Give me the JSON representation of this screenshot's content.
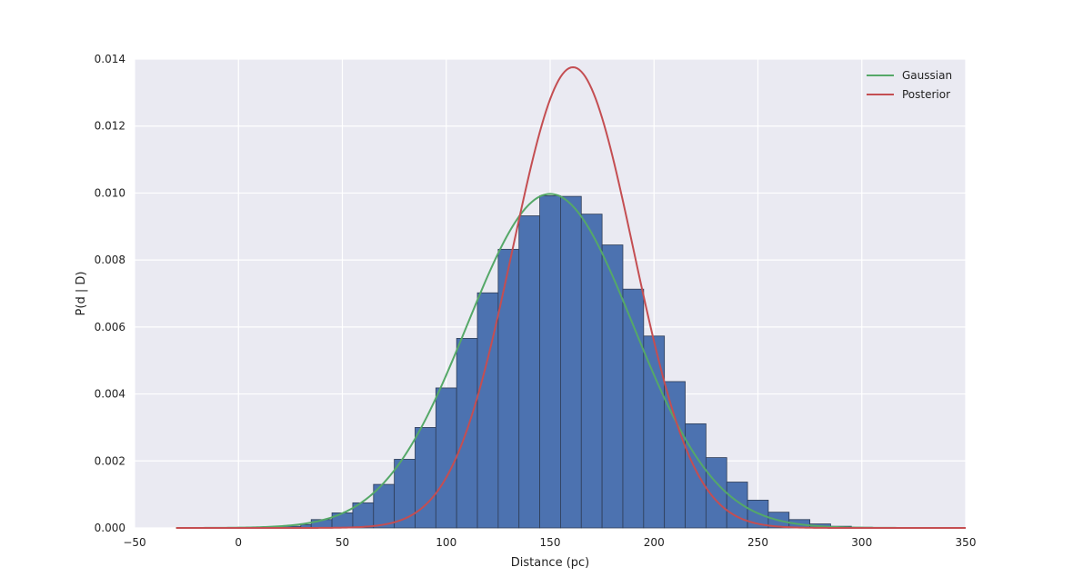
{
  "chart_data": {
    "type": "bar",
    "title": "",
    "xlabel": "Distance (pc)",
    "ylabel": "P(d | D)",
    "xlim": [
      -50,
      350
    ],
    "ylim": [
      0,
      0.014
    ],
    "x_ticks": [
      -50,
      0,
      50,
      100,
      150,
      200,
      250,
      300,
      350
    ],
    "x_tick_labels": [
      "−50",
      "0",
      "50",
      "100",
      "150",
      "200",
      "250",
      "300",
      "350"
    ],
    "y_ticks": [
      0,
      0.002,
      0.004,
      0.006,
      0.008,
      0.01,
      0.012,
      0.014
    ],
    "y_tick_labels": [
      "0.000",
      "0.002",
      "0.004",
      "0.006",
      "0.008",
      "0.010",
      "0.012",
      "0.014"
    ],
    "grid": true,
    "legend_position": "top-right",
    "histogram": {
      "bin_edges": [
        -30,
        -20,
        -10,
        0,
        10,
        20,
        30,
        35,
        45,
        55,
        65,
        75,
        85,
        95,
        105,
        115,
        125,
        135,
        145,
        155,
        165,
        175,
        185,
        195,
        205,
        215,
        225,
        235,
        245,
        255,
        265,
        275,
        285,
        295,
        305,
        315
      ],
      "values": [
        0,
        0,
        0,
        1e-05,
        2e-05,
        5e-05,
        0.0001,
        0.00025,
        0.00045,
        0.00075,
        0.0013,
        0.00205,
        0.003,
        0.00418,
        0.00566,
        0.00702,
        0.00832,
        0.00932,
        0.00992,
        0.0099,
        0.00937,
        0.00845,
        0.00713,
        0.00573,
        0.00437,
        0.00311,
        0.0021,
        0.00137,
        0.00083,
        0.00047,
        0.00025,
        0.00012,
        5e-05,
        2e-05,
        1e-05
      ],
      "color": "#4c72b0"
    },
    "series": [
      {
        "name": "Gaussian",
        "color": "#55a868",
        "mean": 150,
        "sigma": 40,
        "x_range": [
          -30,
          350
        ]
      },
      {
        "name": "Posterior",
        "color": "#c44e52",
        "mode": 161,
        "sigma": 29,
        "x_range": [
          -30,
          350
        ]
      }
    ],
    "colors": {
      "plot_background": "#eaeaf2",
      "grid": "#ffffff"
    }
  }
}
